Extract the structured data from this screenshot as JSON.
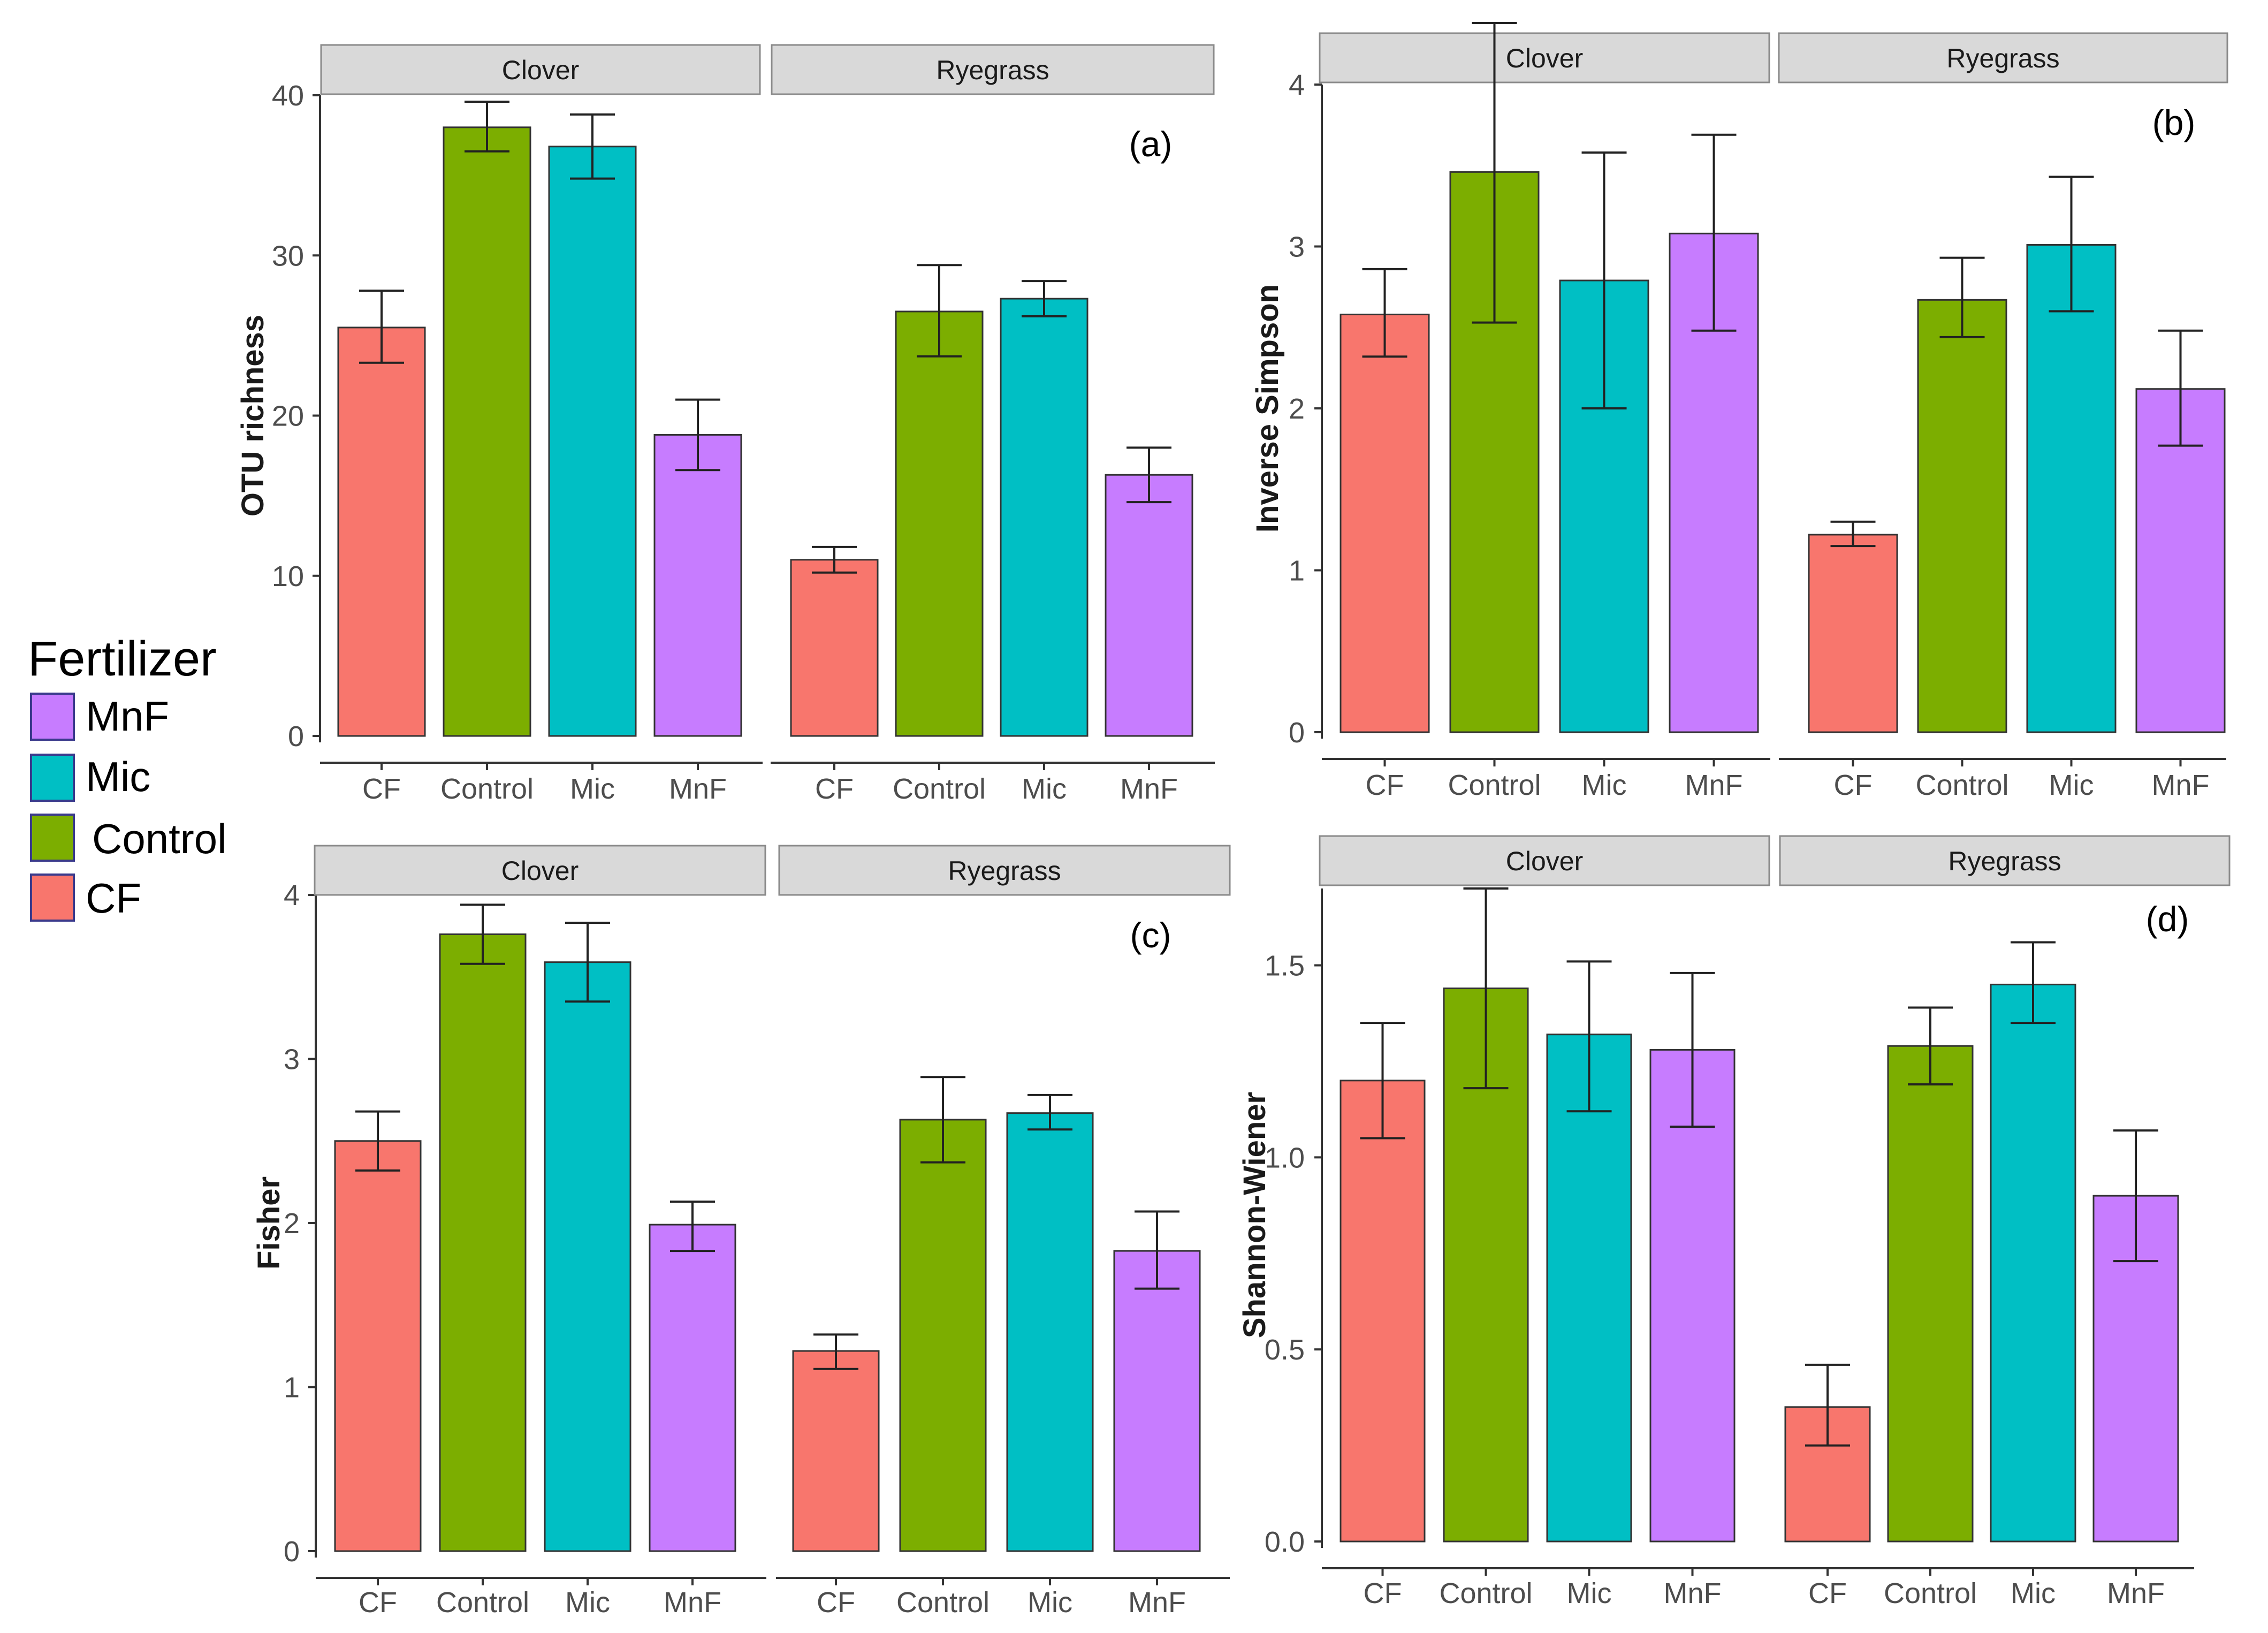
{
  "legend": {
    "title": "Fertilizer",
    "items": [
      {
        "label": "MnF",
        "color": "#c77cff"
      },
      {
        "label": "Mic",
        "color": "#00bfc4"
      },
      {
        "label": "Control",
        "color": "#7cae00"
      },
      {
        "label": "CF",
        "color": "#f8766d"
      }
    ]
  },
  "chart_data": [
    {
      "type": "bar",
      "panel_label": "(a)",
      "ylabel": "OTU richness",
      "ylim": [
        0,
        40
      ],
      "yticks": [
        "0",
        "10",
        "20",
        "30",
        "40"
      ],
      "ytick_values": [
        0,
        10,
        20,
        30,
        40
      ],
      "facets": [
        "Clover",
        "Ryegrass"
      ],
      "categories": [
        "CF",
        "Control",
        "Mic",
        "MnF"
      ],
      "series": [
        {
          "name": "Clover",
          "values": [
            25.5,
            38,
            36.8,
            18.8
          ],
          "err_low": [
            23.3,
            36.5,
            34.8,
            16.6
          ],
          "err_high": [
            27.8,
            39.6,
            38.8,
            21.0
          ]
        },
        {
          "name": "Ryegrass",
          "values": [
            11,
            26.5,
            27.3,
            16.3
          ],
          "err_low": [
            10.2,
            23.7,
            26.2,
            14.6
          ],
          "err_high": [
            11.8,
            29.4,
            28.4,
            18.0
          ]
        }
      ]
    },
    {
      "type": "bar",
      "panel_label": "(b)",
      "ylabel": "Inverse Simpson",
      "ylim": [
        0,
        4
      ],
      "yticks": [
        "0",
        "1",
        "2",
        "3",
        "4"
      ],
      "ytick_values": [
        0,
        1,
        2,
        3,
        4
      ],
      "facets": [
        "Clover",
        "Ryegrass"
      ],
      "categories": [
        "CF",
        "Control",
        "Mic",
        "MnF"
      ],
      "series": [
        {
          "name": "Clover",
          "values": [
            2.58,
            3.46,
            2.79,
            3.08
          ],
          "err_low": [
            2.32,
            2.53,
            2.0,
            2.48
          ],
          "err_high": [
            2.86,
            4.38,
            3.58,
            3.69
          ]
        },
        {
          "name": "Ryegrass",
          "values": [
            1.22,
            2.67,
            3.01,
            2.12
          ],
          "err_low": [
            1.15,
            2.44,
            2.6,
            1.77
          ],
          "err_high": [
            1.3,
            2.93,
            3.43,
            2.48
          ]
        }
      ]
    },
    {
      "type": "bar",
      "panel_label": "(c)",
      "ylabel": "Fisher",
      "ylim": [
        0,
        4
      ],
      "yticks": [
        "0",
        "1",
        "2",
        "3",
        "4"
      ],
      "ytick_values": [
        0,
        1,
        2,
        3,
        4
      ],
      "facets": [
        "Clover",
        "Ryegrass"
      ],
      "categories": [
        "CF",
        "Control",
        "Mic",
        "MnF"
      ],
      "series": [
        {
          "name": "Clover",
          "values": [
            2.5,
            3.76,
            3.59,
            1.99
          ],
          "err_low": [
            2.32,
            3.58,
            3.35,
            1.83
          ],
          "err_high": [
            2.68,
            3.94,
            3.83,
            2.13
          ]
        },
        {
          "name": "Ryegrass",
          "values": [
            1.22,
            2.63,
            2.67,
            1.83
          ],
          "err_low": [
            1.11,
            2.37,
            2.57,
            1.6
          ],
          "err_high": [
            1.32,
            2.89,
            2.78,
            2.07
          ]
        }
      ]
    },
    {
      "type": "bar",
      "panel_label": "(d)",
      "ylabel": "Shannon-Wiener",
      "ylim": [
        0,
        1.7
      ],
      "yticks": [
        "0.0",
        "0.5",
        "1.0",
        "1.5"
      ],
      "ytick_values": [
        0,
        0.5,
        1.0,
        1.5
      ],
      "facets": [
        "Clover",
        "Ryegrass"
      ],
      "categories": [
        "CF",
        "Control",
        "Mic",
        "MnF"
      ],
      "series": [
        {
          "name": "Clover",
          "values": [
            1.2,
            1.44,
            1.32,
            1.28
          ],
          "err_low": [
            1.05,
            1.18,
            1.12,
            1.08
          ],
          "err_high": [
            1.35,
            1.7,
            1.51,
            1.48
          ]
        },
        {
          "name": "Ryegrass",
          "values": [
            0.35,
            1.29,
            1.45,
            0.9
          ],
          "err_low": [
            0.25,
            1.19,
            1.35,
            0.73
          ],
          "err_high": [
            0.46,
            1.39,
            1.56,
            1.07
          ]
        }
      ]
    }
  ]
}
